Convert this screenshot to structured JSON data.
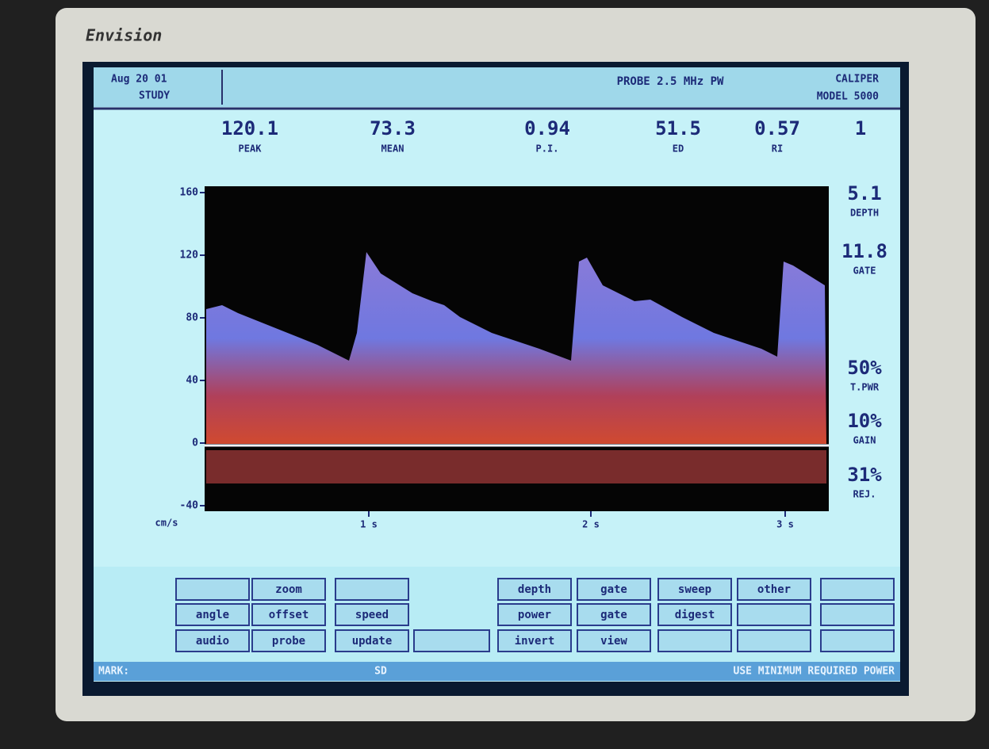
{
  "brand": "Envision",
  "header": {
    "left": [
      "Aug 20 01",
      "STUDY"
    ],
    "center": "PROBE 2.5 MHz PW",
    "right": [
      "CALIPER",
      "MODEL 5000"
    ]
  },
  "measurements": [
    {
      "value": "120.1",
      "label": "PEAK"
    },
    {
      "value": "73.3",
      "label": "MEAN"
    },
    {
      "value": "0.94",
      "label": "P.I."
    },
    {
      "value": "51.5",
      "label": "ED"
    },
    {
      "value": "0.57",
      "label": "RI"
    },
    {
      "value": "1"
    }
  ],
  "spectrum": {
    "yticks": [
      "160",
      "120",
      "80",
      "40",
      "0",
      "-40"
    ],
    "unit": "cm/s",
    "xticks": [
      "1 s",
      "2 s",
      "3 s"
    ]
  },
  "settings": [
    {
      "value": "5.1",
      "label": "DEPTH"
    },
    {
      "value": "11.8",
      "label": "GATE"
    },
    {
      "value": "50%",
      "label": "T.PWR"
    },
    {
      "value": "10%",
      "label": "GAIN"
    },
    {
      "value": "31%",
      "label": "REJ."
    }
  ],
  "buttons": [
    [
      null,
      "zoom",
      null,
      null,
      "depth",
      "gate",
      "sweep",
      "other",
      null
    ],
    [
      "angle",
      "offset",
      "speed",
      null,
      "power",
      "gate",
      "digest",
      null,
      null
    ],
    [
      "audio",
      "probe",
      "update",
      null,
      "invert",
      "view",
      null,
      null,
      null
    ]
  ],
  "status": {
    "left": "MARK:",
    "center": "SD",
    "right": "USE MINIMUM REQUIRED POWER"
  }
}
